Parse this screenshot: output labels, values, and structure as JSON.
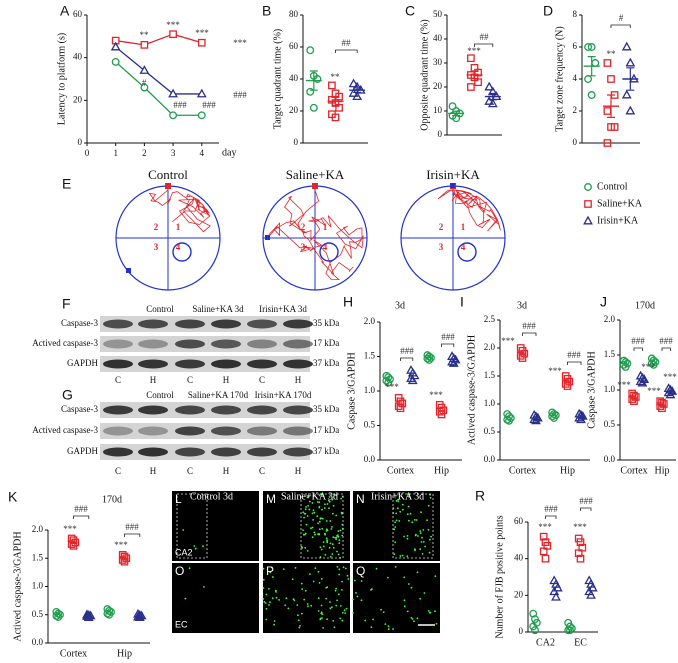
{
  "chart_data": [
    {
      "type": "line",
      "panel": "A",
      "ylabel": "Latency to platform (s)",
      "xlabel": "day",
      "x": [
        1,
        2,
        3,
        4
      ],
      "xlim": [
        0,
        4.6
      ],
      "xticks": [
        0,
        1,
        2,
        3,
        4
      ],
      "ylim": [
        0,
        60
      ],
      "yticks": [
        0,
        20,
        40,
        60
      ],
      "series": [
        {
          "name": "Control",
          "color": "#1f9e4f",
          "marker": "circle",
          "values": [
            38,
            26,
            13,
            13
          ]
        },
        {
          "name": "Saline+KA",
          "color": "#e3242b",
          "marker": "square",
          "values": [
            48,
            46,
            51,
            47
          ]
        },
        {
          "name": "Irisin+KA",
          "color": "#2a2f8c",
          "marker": "triangle",
          "values": [
            45,
            34,
            23,
            23
          ]
        }
      ],
      "annotations": [
        "**",
        "***",
        "***",
        "***",
        "#",
        "###",
        "###",
        "###"
      ]
    },
    {
      "type": "dot",
      "panel": "B",
      "ylabel": "Target quadrant time (%)",
      "ylim": [
        0,
        80
      ],
      "yticks": [
        0,
        20,
        40,
        60,
        80
      ],
      "series": [
        {
          "color": "#1f9e4f",
          "marker": "circle",
          "values": [
            58,
            42,
            40,
            32,
            22
          ],
          "mean": 39,
          "sem": 6
        },
        {
          "color": "#e3242b",
          "marker": "square",
          "values": [
            36,
            31,
            29,
            27,
            25,
            22,
            18,
            16
          ],
          "mean": 26,
          "sem": 2.5
        },
        {
          "color": "#2a2f8c",
          "marker": "triangle",
          "values": [
            37,
            35,
            33,
            31,
            29
          ],
          "mean": 33,
          "sem": 1.4
        }
      ],
      "annotations": [
        "**",
        "##"
      ]
    },
    {
      "type": "dot",
      "panel": "C",
      "ylabel": "Opposite quadrant time (%)",
      "ylim": [
        0,
        50
      ],
      "yticks": [
        0,
        10,
        20,
        30,
        40,
        50
      ],
      "series": [
        {
          "color": "#1f9e4f",
          "marker": "circle",
          "values": [
            12,
            10,
            9,
            8,
            7
          ],
          "mean": 9,
          "sem": 0.9
        },
        {
          "color": "#e3242b",
          "marker": "square",
          "values": [
            32,
            28,
            26,
            25,
            24,
            22,
            20
          ],
          "mean": 25,
          "sem": 1.5
        },
        {
          "color": "#2a2f8c",
          "marker": "triangle",
          "values": [
            20,
            18,
            16,
            14,
            13
          ],
          "mean": 16,
          "sem": 1.3
        }
      ],
      "annotations": [
        "***",
        "##"
      ]
    },
    {
      "type": "dot",
      "panel": "D",
      "ylabel": "Target zone frequency (N)",
      "ylim": [
        0,
        8
      ],
      "yticks": [
        0,
        2,
        4,
        6,
        8
      ],
      "series": [
        {
          "color": "#1f9e4f",
          "marker": "circle",
          "values": [
            6,
            6,
            5,
            4,
            3
          ],
          "mean": 4.8,
          "sem": 0.6
        },
        {
          "color": "#e3242b",
          "marker": "square",
          "values": [
            5,
            4,
            3,
            2,
            1,
            1,
            0
          ],
          "mean": 2.3,
          "sem": 0.7
        },
        {
          "color": "#2a2f8c",
          "marker": "triangle",
          "values": [
            6,
            5,
            4,
            3,
            2
          ],
          "mean": 4,
          "sem": 0.7
        }
      ],
      "annotations": [
        "**",
        "#"
      ]
    },
    {
      "type": "dot",
      "panel": "H",
      "title": "3d",
      "ylabel": "Caspase 3/GAPDH",
      "categories": [
        "Cortex",
        "Hip"
      ],
      "ylim": [
        0,
        2
      ],
      "yticks": [
        {
          "value": 0,
          "label": "0.0"
        },
        0.5,
        {
          "value": 1,
          "label": "1.0"
        },
        1.5,
        {
          "value": 2,
          "label": "2.0"
        }
      ],
      "series": [
        {
          "color": "#1f9e4f",
          "marker": "circle",
          "values": [
            [
              1.22,
              1.2,
              1.17,
              1.15,
              1.12
            ],
            [
              1.52,
              1.5,
              1.48,
              1.47,
              1.45
            ]
          ]
        },
        {
          "color": "#e3242b",
          "marker": "square",
          "values": [
            [
              0.9,
              0.85,
              0.82,
              0.78,
              0.75
            ],
            [
              0.8,
              0.76,
              0.72,
              0.7,
              0.66
            ]
          ]
        },
        {
          "color": "#2a2f8c",
          "marker": "triangle",
          "values": [
            [
              1.3,
              1.26,
              1.22,
              1.18,
              1.15
            ],
            [
              1.5,
              1.47,
              1.45,
              1.42,
              1.4
            ]
          ]
        }
      ],
      "annotations": [
        "***",
        "###",
        "***",
        "###"
      ]
    },
    {
      "type": "dot",
      "panel": "I",
      "title": "3d",
      "ylabel": "Actived caspase-3/GAPDH",
      "categories": [
        "Cortex",
        "Hip"
      ],
      "ylim": [
        0,
        2.5
      ],
      "yticks": [
        {
          "value": 0,
          "label": "0.0"
        },
        0.5,
        {
          "value": 1,
          "label": "1.0"
        },
        1.5,
        {
          "value": 2,
          "label": "2.0"
        },
        2.5
      ],
      "series": [
        {
          "color": "#1f9e4f",
          "marker": "circle",
          "values": [
            [
              0.82,
              0.78,
              0.75,
              0.72,
              0.7
            ],
            [
              0.85,
              0.82,
              0.8,
              0.78,
              0.75
            ]
          ]
        },
        {
          "color": "#e3242b",
          "marker": "square",
          "values": [
            [
              2.0,
              1.95,
              1.9,
              1.86,
              1.82
            ],
            [
              1.5,
              1.45,
              1.4,
              1.36,
              1.32
            ]
          ]
        },
        {
          "color": "#2a2f8c",
          "marker": "triangle",
          "values": [
            [
              0.8,
              0.77,
              0.75,
              0.72,
              0.7
            ],
            [
              0.82,
              0.8,
              0.78,
              0.75,
              0.72
            ]
          ]
        }
      ],
      "annotations": [
        "***",
        "###",
        "***",
        "###"
      ]
    },
    {
      "type": "dot",
      "panel": "J",
      "title": "170d",
      "ylabel": "Caspase 3/GAPDH",
      "categories": [
        "Cortex",
        "Hip"
      ],
      "ylim": [
        0,
        2
      ],
      "yticks": [
        {
          "value": 0,
          "label": "0.0"
        },
        0.5,
        {
          "value": 1,
          "label": "1.0"
        },
        1.5,
        {
          "value": 2,
          "label": "2.0"
        }
      ],
      "series": [
        {
          "color": "#1f9e4f",
          "marker": "circle",
          "values": [
            [
              1.42,
              1.4,
              1.38,
              1.36,
              1.33
            ],
            [
              1.45,
              1.42,
              1.4,
              1.38,
              1.36
            ]
          ]
        },
        {
          "color": "#e3242b",
          "marker": "square",
          "values": [
            [
              0.95,
              0.92,
              0.9,
              0.87,
              0.84
            ],
            [
              0.84,
              0.82,
              0.8,
              0.77,
              0.74
            ]
          ]
        },
        {
          "color": "#2a2f8c",
          "marker": "triangle",
          "values": [
            [
              1.2,
              1.17,
              1.15,
              1.12,
              1.1
            ],
            [
              1.02,
              1.0,
              0.98,
              0.96,
              0.93
            ]
          ]
        }
      ],
      "annotations": [
        "###",
        "***",
        "***",
        "###",
        "***",
        "***"
      ]
    },
    {
      "type": "dot",
      "panel": "K",
      "title": "170d",
      "ylabel": "Actived caspase-3/GAPDH",
      "categories": [
        "Cortex",
        "Hip"
      ],
      "ylim": [
        0,
        2
      ],
      "yticks": [
        {
          "value": 0,
          "label": "0.0"
        },
        0.5,
        {
          "value": 1,
          "label": "1.0"
        },
        1.5,
        {
          "value": 2,
          "label": "2.0"
        }
      ],
      "series": [
        {
          "color": "#1f9e4f",
          "marker": "circle",
          "values": [
            [
              0.55,
              0.52,
              0.5,
              0.48,
              0.46
            ],
            [
              0.6,
              0.57,
              0.55,
              0.52,
              0.5
            ]
          ]
        },
        {
          "color": "#e3242b",
          "marker": "square",
          "values": [
            [
              1.85,
              1.82,
              1.78,
              1.75,
              1.72
            ],
            [
              1.56,
              1.53,
              1.5,
              1.47,
              1.44
            ]
          ]
        },
        {
          "color": "#2a2f8c",
          "marker": "triangle",
          "values": [
            [
              0.5,
              0.49,
              0.48,
              0.47,
              0.45
            ],
            [
              0.51,
              0.49,
              0.48,
              0.46,
              0.45
            ]
          ]
        }
      ],
      "annotations": [
        "***",
        "###",
        "***",
        "###"
      ]
    },
    {
      "type": "dot",
      "panel": "R",
      "ylabel": "Number of FJB positive points",
      "categories": [
        "CA2",
        "EC"
      ],
      "ylim": [
        0,
        60
      ],
      "yticks": [
        0,
        20,
        40,
        60
      ],
      "series": [
        {
          "color": "#1f9e4f",
          "marker": "circle",
          "values": [
            [
              10,
              7,
              5,
              3,
              1
            ],
            [
              5,
              3,
              2,
              1,
              1
            ]
          ]
        },
        {
          "color": "#e3242b",
          "marker": "square",
          "values": [
            [
              52,
              49,
              47,
              44,
              40
            ],
            [
              51,
              49,
              46,
              43,
              40
            ]
          ]
        },
        {
          "color": "#2a2f8c",
          "marker": "triangle",
          "values": [
            [
              28,
              26,
              24,
              22,
              19
            ],
            [
              28,
              26,
              24,
              22,
              20
            ]
          ]
        }
      ],
      "annotations": [
        "***",
        "###",
        "***",
        "###"
      ]
    }
  ],
  "maze": {
    "panel": "E",
    "titles": [
      "Control",
      "Saline+KA",
      "Irisin+KA"
    ],
    "quadrants": [
      "1",
      "2",
      "3",
      "4"
    ]
  },
  "blots": [
    {
      "panel": "F",
      "columns": [
        "Control",
        "Saline+KA  3d",
        "Irisin+KA 3d"
      ],
      "rows": [
        "Caspase-3",
        "Actived caspase-3",
        "GAPDH"
      ],
      "sizes": [
        "35 kDa",
        "17 kDa",
        "37 kDa"
      ],
      "lanes": [
        "C",
        "H",
        "C",
        "H",
        "C",
        "H"
      ]
    },
    {
      "panel": "G",
      "columns": [
        "Control",
        "Saline+KA 170d",
        "Irisin+KA 170d"
      ],
      "rows": [
        "Caspase-3",
        "Actived caspase-3",
        "GAPDH"
      ],
      "sizes": [
        "35 kDa",
        "17 kDa",
        "37 kDa"
      ],
      "lanes": [
        "C",
        "H",
        "C",
        "H",
        "C",
        "H"
      ]
    }
  ],
  "fluorescence": {
    "panels": [
      "L",
      "M",
      "N",
      "O",
      "P",
      "Q"
    ],
    "titles": [
      "Control 3d",
      "Saline+KA 3d",
      "Irisin+KA 3d"
    ],
    "regions": [
      "CA2",
      "EC"
    ]
  }
}
